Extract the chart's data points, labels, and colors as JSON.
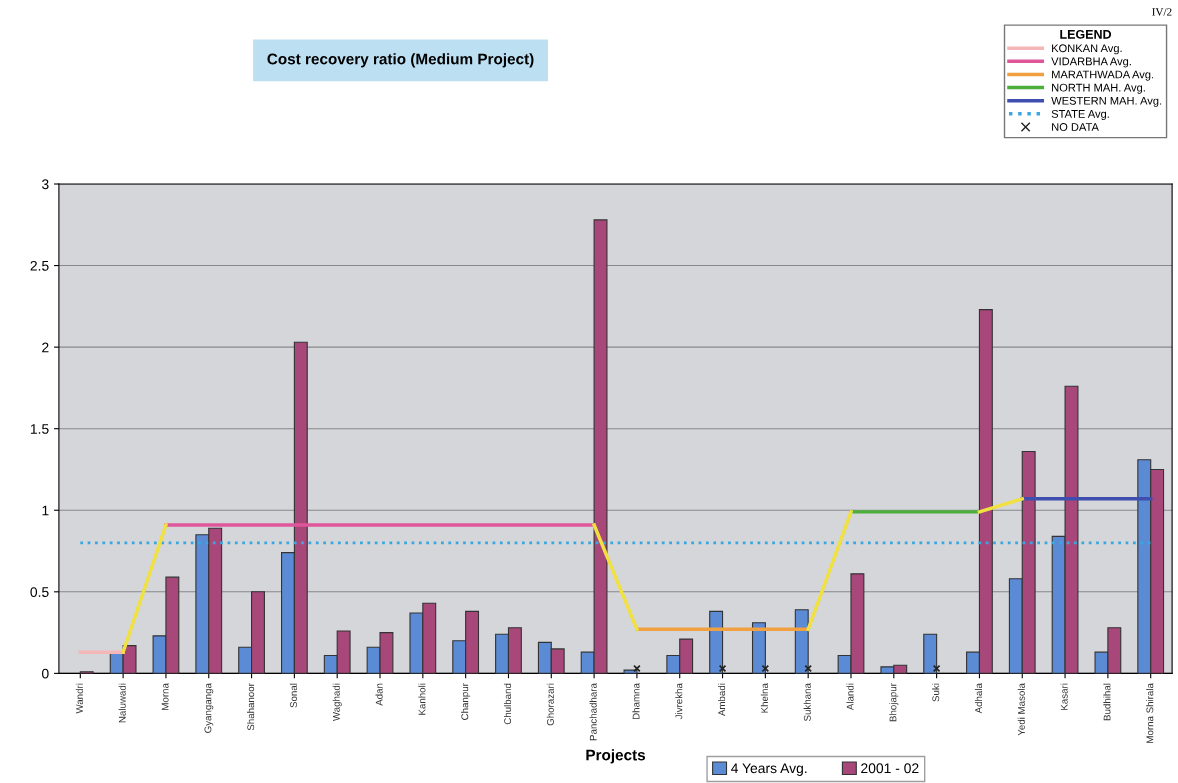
{
  "chart_data": {
    "type": "bar",
    "title": "Cost recovery ratio (Medium Project)",
    "xlabel": "Projects",
    "categories": [
      "Wandri",
      "Naluwadi",
      "Morna",
      "Gyanganga",
      "Shahanoor",
      "Sonal",
      "Waghadi",
      "Adan",
      "Kanholi",
      "Chanpur",
      "Chulband",
      "Ghorazari",
      "Panchadhara",
      "Dhamna",
      "Jivrekha",
      "Ambadi",
      "Khelna",
      "Sukhana",
      "Alandi",
      "Bhojapur",
      "Suki",
      "Adhala",
      "Yedi Masola",
      "Kasari",
      "Budhihal",
      "Morna Shirala"
    ],
    "series": [
      {
        "name": "4 Years Avg.",
        "color": "#5b8bd4",
        "values": [
          null,
          0.13,
          0.23,
          0.85,
          0.16,
          0.74,
          0.11,
          0.16,
          0.37,
          0.2,
          0.24,
          0.19,
          0.13,
          0.02,
          0.11,
          0.38,
          0.31,
          0.39,
          0.11,
          0.04,
          0.24,
          0.13,
          0.58,
          0.84,
          0.13,
          1.31
        ]
      },
      {
        "name": "2001 - 02",
        "color": "#a8477a",
        "values": [
          0.01,
          0.17,
          0.59,
          0.89,
          0.5,
          2.03,
          0.26,
          0.25,
          0.43,
          0.38,
          0.28,
          0.15,
          2.78,
          null,
          0.21,
          null,
          null,
          null,
          0.61,
          0.05,
          null,
          2.23,
          1.36,
          1.76,
          0.28,
          1.25
        ]
      },
      {
        "type": "line",
        "color": "#f0e040",
        "values": [
          null,
          0.13,
          0.91,
          null,
          null,
          null,
          null,
          null,
          null,
          null,
          null,
          null,
          0.91,
          0.27,
          null,
          null,
          null,
          0.27,
          0.99,
          null,
          null,
          0.99,
          1.07,
          null,
          null,
          null
        ]
      },
      {
        "type": "line",
        "name": "KONKAN Avg.",
        "color": "#f4b6b6",
        "values": [
          0.13,
          0.13,
          null,
          null,
          null,
          null,
          null,
          null,
          null,
          null,
          null,
          null,
          null,
          null,
          null,
          null,
          null,
          null,
          null,
          null,
          null,
          null,
          null,
          null,
          null,
          null
        ]
      },
      {
        "type": "line",
        "name": "VIDARBHA Avg.",
        "color": "#e0569a",
        "values": [
          null,
          null,
          0.91,
          0.91,
          0.91,
          0.91,
          0.91,
          0.91,
          0.91,
          0.91,
          0.91,
          0.91,
          0.91,
          null,
          null,
          null,
          null,
          null,
          null,
          null,
          null,
          null,
          null,
          null,
          null,
          null
        ]
      },
      {
        "type": "line",
        "name": "MARATHWADA Avg.",
        "color": "#f0a040",
        "values": [
          null,
          null,
          null,
          null,
          null,
          null,
          null,
          null,
          null,
          null,
          null,
          null,
          null,
          0.27,
          0.27,
          0.27,
          0.27,
          0.27,
          null,
          null,
          null,
          null,
          null,
          null,
          null,
          null
        ]
      },
      {
        "type": "line",
        "name": "NORTH MAH. Avg.",
        "color": "#4caf3c",
        "values": [
          null,
          null,
          null,
          null,
          null,
          null,
          null,
          null,
          null,
          null,
          null,
          null,
          null,
          null,
          null,
          null,
          null,
          null,
          0.99,
          0.99,
          0.99,
          0.99,
          null,
          null,
          null,
          null
        ]
      },
      {
        "type": "line",
        "name": "WESTERN MAH. Avg.",
        "color": "#3f4fb0",
        "values": [
          null,
          null,
          null,
          null,
          null,
          null,
          null,
          null,
          null,
          null,
          null,
          null,
          null,
          null,
          null,
          null,
          null,
          null,
          null,
          null,
          null,
          null,
          1.07,
          1.07,
          1.07,
          1.07
        ]
      },
      {
        "type": "line",
        "name": "STATE Avg.",
        "color": "#3aa8e0",
        "line_style": "dotted",
        "values": [
          0.8,
          0.8,
          0.8,
          0.8,
          0.8,
          0.8,
          0.8,
          0.8,
          0.8,
          0.8,
          0.8,
          0.8,
          0.8,
          0.8,
          0.8,
          0.8,
          0.8,
          0.8,
          0.8,
          0.8,
          0.8,
          0.8,
          0.8,
          0.8,
          0.8,
          0.8
        ]
      },
      {
        "type": "scatter",
        "name": "NO DATA",
        "color": "#222222",
        "marker": "cross",
        "values": [
          null,
          null,
          null,
          null,
          null,
          null,
          null,
          null,
          null,
          null,
          null,
          null,
          null,
          0.03,
          null,
          0.03,
          0.03,
          0.03,
          null,
          null,
          0.03,
          null,
          null,
          null,
          null,
          null
        ]
      }
    ],
    "legend_title": "LEGEND",
    "ylim": [
      0,
      3
    ],
    "yticks": [
      0,
      0.5,
      1,
      1.5,
      2,
      2.5,
      3
    ],
    "grid": "y",
    "legend": "top right",
    "annotations": [
      "IV/2"
    ]
  }
}
